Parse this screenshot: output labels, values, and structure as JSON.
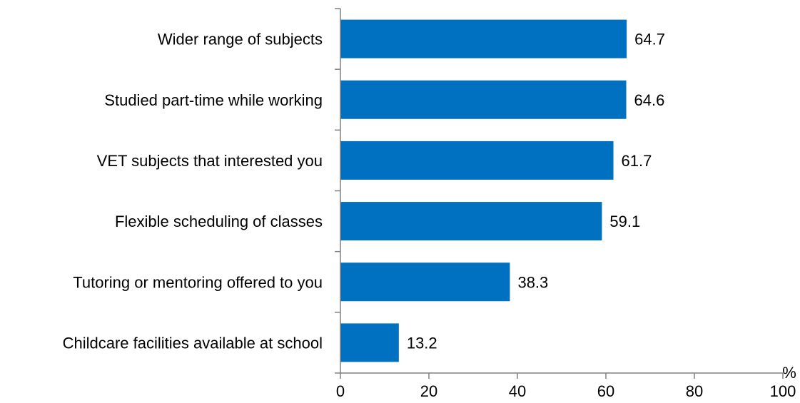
{
  "chart_data": {
    "type": "bar",
    "orientation": "horizontal",
    "categories": [
      "Wider range of subjects",
      "Studied part-time while working",
      "VET subjects that interested you",
      "Flexible scheduling of classes",
      "Tutoring or mentoring offered to you",
      "Childcare facilities available at school"
    ],
    "values": [
      64.7,
      64.6,
      61.7,
      59.1,
      38.3,
      13.2
    ],
    "value_labels": [
      "64.7",
      "64.6",
      "61.7",
      "59.1",
      "38.3",
      "13.2"
    ],
    "xlim": [
      0,
      100
    ],
    "xticks": [
      0,
      20,
      40,
      60,
      80,
      100
    ],
    "xtick_labels": [
      "0",
      "20",
      "40",
      "60",
      "80",
      "100"
    ],
    "unit": "%",
    "grid": false,
    "bar_color": "#0070C0",
    "axis_color": "#808080"
  }
}
